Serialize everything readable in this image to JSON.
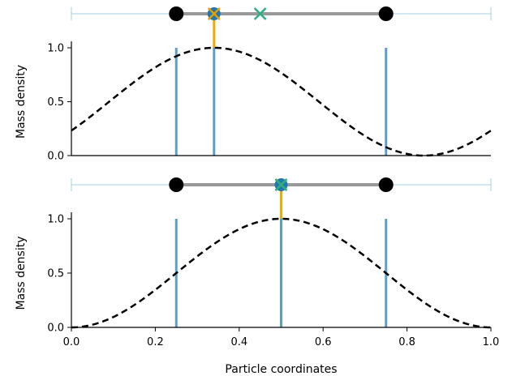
{
  "chart_data": [
    {
      "type": "line",
      "panel": "top",
      "xlim": [
        0,
        1
      ],
      "ylim": [
        0,
        1
      ],
      "ylabel": "Mass density",
      "xlabel": "",
      "show_x_ticklabels": false,
      "y_ticks": [
        0.0,
        0.5,
        1.0
      ],
      "y_ticklabels": [
        "0.0",
        "0.5",
        "1.0"
      ],
      "density_curve": {
        "function": "cos_squared",
        "peak_x": 0.34,
        "style": "dashed",
        "color": "#000000"
      },
      "particle_lines": [
        0.25,
        0.34,
        0.75
      ],
      "bar": {
        "endpoints": [
          0.25,
          0.75
        ],
        "marker_x": 0.34,
        "cross_markers": [
          {
            "x": 0.34,
            "color": "#e69f00"
          },
          {
            "x": 0.45,
            "color": "#2ab07f"
          }
        ],
        "connector_x": 0.34
      },
      "colors": {
        "particle_line": "#5b9fc8",
        "bar_line": "#999999",
        "endpoint_marker": "#000000",
        "center_marker": "#1f77b4",
        "connector": "#f2a900",
        "baseline": "#a6cfe3"
      }
    },
    {
      "type": "line",
      "panel": "bottom",
      "xlim": [
        0,
        1
      ],
      "ylim": [
        0,
        1
      ],
      "ylabel": "Mass density",
      "xlabel": "Particle coordinates",
      "show_x_ticklabels": true,
      "x_ticks": [
        0.0,
        0.2,
        0.4,
        0.6,
        0.8,
        1.0
      ],
      "x_ticklabels": [
        "0.0",
        "0.2",
        "0.4",
        "0.6",
        "0.8",
        "1.0"
      ],
      "y_ticks": [
        0.0,
        0.5,
        1.0
      ],
      "y_ticklabels": [
        "0.0",
        "0.5",
        "1.0"
      ],
      "density_curve": {
        "function": "cos_squared",
        "peak_x": 0.5,
        "style": "dashed",
        "color": "#000000"
      },
      "particle_lines": [
        0.25,
        0.5,
        0.75
      ],
      "bar": {
        "endpoints": [
          0.25,
          0.75
        ],
        "marker_x": 0.5,
        "cross_markers": [
          {
            "x": 0.5,
            "color": "#e69f00"
          },
          {
            "x": 0.5,
            "color": "#2ab07f"
          }
        ],
        "connector_x": 0.5
      },
      "colors": {
        "particle_line": "#5b9fc8",
        "bar_line": "#999999",
        "endpoint_marker": "#000000",
        "center_marker": "#1f77b4",
        "connector": "#f2a900",
        "baseline": "#a6cfe3"
      }
    }
  ]
}
